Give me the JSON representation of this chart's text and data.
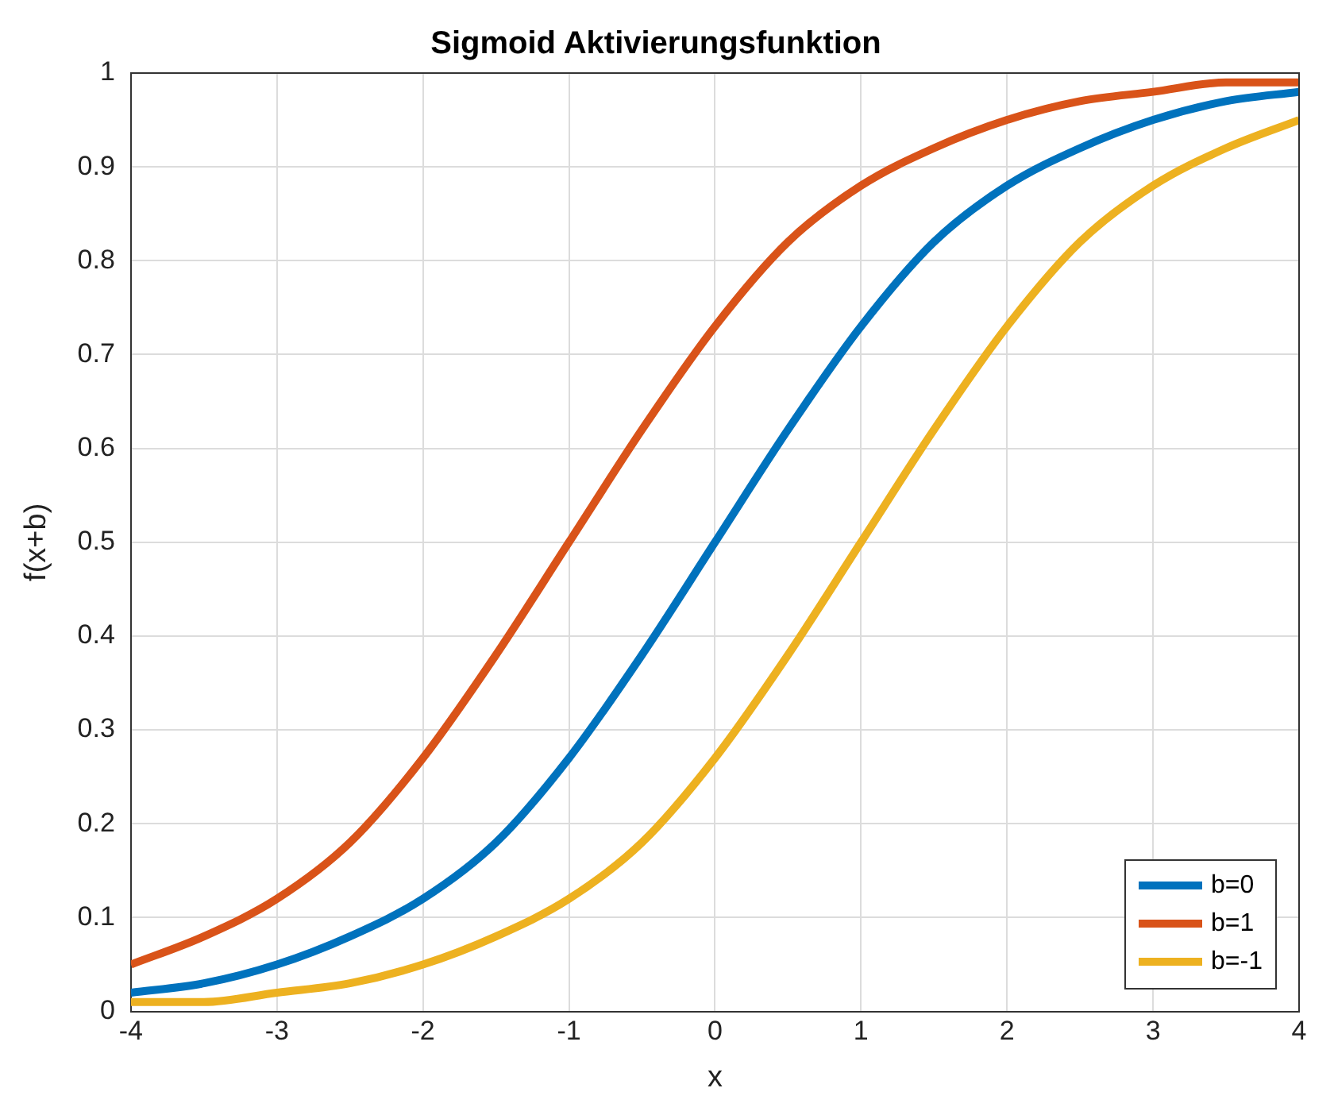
{
  "chart_data": {
    "type": "line",
    "title": "Sigmoid Aktivierungsfunktion",
    "xlabel": "x",
    "ylabel": "f(x+b)",
    "x": [
      -4,
      -3.5,
      -3,
      -2.5,
      -2,
      -1.5,
      -1,
      -0.5,
      0,
      0.5,
      1,
      1.5,
      2,
      2.5,
      3,
      3.5,
      4
    ],
    "series": [
      {
        "name": "b=0",
        "color": "#0072bd",
        "values": [
          0.02,
          0.03,
          0.05,
          0.08,
          0.12,
          0.18,
          0.27,
          0.38,
          0.5,
          0.62,
          0.73,
          0.82,
          0.88,
          0.92,
          0.95,
          0.97,
          0.98
        ]
      },
      {
        "name": "b=1",
        "color": "#d95319",
        "values": [
          0.05,
          0.08,
          0.12,
          0.18,
          0.27,
          0.38,
          0.5,
          0.62,
          0.73,
          0.82,
          0.88,
          0.92,
          0.95,
          0.97,
          0.98,
          0.99,
          0.99
        ]
      },
      {
        "name": "b=-1",
        "color": "#edb120",
        "values": [
          0.01,
          0.01,
          0.02,
          0.03,
          0.05,
          0.08,
          0.12,
          0.18,
          0.27,
          0.38,
          0.5,
          0.62,
          0.73,
          0.82,
          0.88,
          0.92,
          0.95
        ]
      }
    ],
    "xlim": [
      -4,
      4
    ],
    "xticks": [
      -4,
      -3,
      -2,
      -1,
      0,
      1,
      2,
      3,
      4
    ],
    "ylim": [
      0,
      1
    ],
    "yticks": [
      0,
      0.1,
      0.2,
      0.3,
      0.4,
      0.5,
      0.6,
      0.7,
      0.8,
      0.9,
      1
    ],
    "grid": true,
    "legend": "bottom right",
    "marker": "none",
    "line_style": "solid"
  }
}
